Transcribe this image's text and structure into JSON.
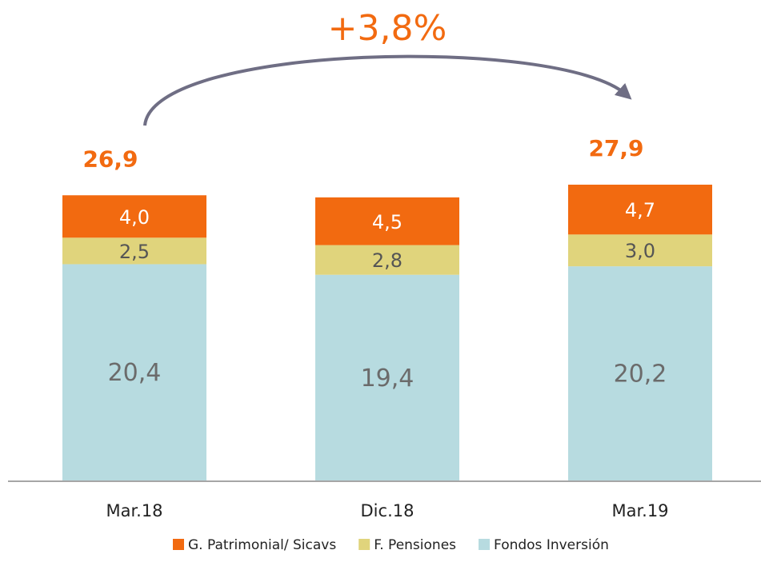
{
  "chart_data": {
    "type": "stacked_bar",
    "annotation": "+3,8%",
    "categories": [
      "Mar.18",
      "Dic.18",
      "Mar.19"
    ],
    "series": [
      {
        "name": "G. Patrimonial/ Sicavs",
        "color": "#f26a10",
        "values": [
          4.0,
          4.5,
          4.7
        ],
        "value_labels": [
          "4,0",
          "4,5",
          "4,7"
        ]
      },
      {
        "name": "F. Pensiones",
        "color": "#e0d47c",
        "values": [
          2.5,
          2.8,
          3.0
        ],
        "value_labels": [
          "2,5",
          "2,8",
          "3,0"
        ]
      },
      {
        "name": "Fondos Inversión",
        "color": "#b7dbe0",
        "values": [
          20.4,
          19.4,
          20.2
        ],
        "value_labels": [
          "20,4",
          "19,4",
          "20,2"
        ]
      }
    ],
    "totals": [
      26.9,
      null,
      27.9
    ],
    "total_labels": [
      "26,9",
      null,
      "27,9"
    ]
  }
}
